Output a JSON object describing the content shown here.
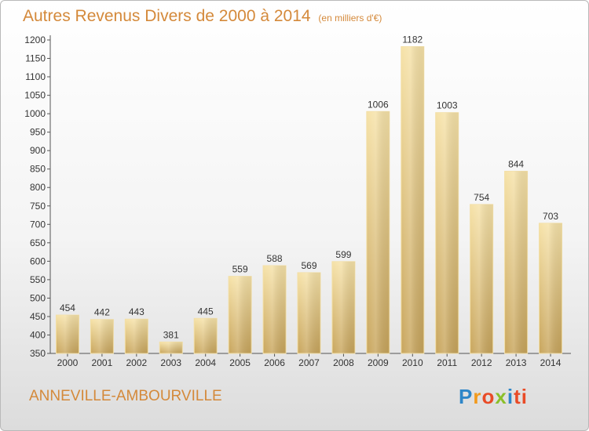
{
  "chart_data": {
    "type": "bar",
    "title": "Autres Revenus Divers de 2000 à 2014",
    "subtitle": "(en milliers d'€)",
    "categories": [
      "2000",
      "2001",
      "2002",
      "2003",
      "2004",
      "2005",
      "2006",
      "2007",
      "2008",
      "2009",
      "2010",
      "2011",
      "2012",
      "2013",
      "2014"
    ],
    "values": [
      454,
      442,
      443,
      381,
      445,
      559,
      588,
      569,
      599,
      1006,
      1182,
      1003,
      754,
      844,
      703
    ],
    "ylim": [
      350,
      1200
    ],
    "yticks": [
      350,
      400,
      450,
      500,
      550,
      600,
      650,
      700,
      750,
      800,
      850,
      900,
      950,
      1000,
      1050,
      1100,
      1150,
      1200
    ],
    "grid": false,
    "bar_color": "#e3c47f"
  },
  "location": "ANNEVILLE-AMBOURVILLE",
  "logo": [
    "P",
    "r",
    "o",
    "x",
    "i",
    "ti"
  ]
}
